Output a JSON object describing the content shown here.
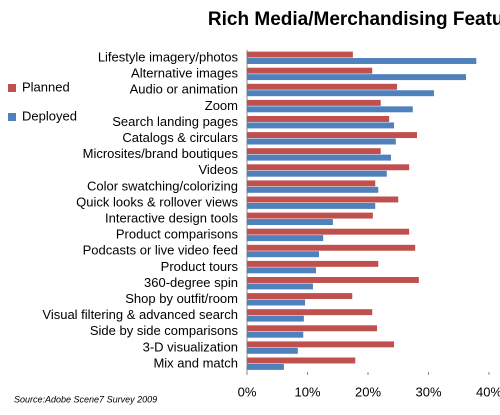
{
  "chart_data": {
    "type": "bar",
    "orientation": "horizontal",
    "title": "Rich Media/Merchandising Features",
    "source": "Source:Adobe Scene7 Survey 2009",
    "categories": [
      "Lifestyle imagery/photos",
      "Alternative images",
      "Audio or animation",
      "Zoom",
      "Search landing pages",
      "Catalogs & circulars",
      "Microsites/brand boutiques",
      "Videos",
      "Color swatching/colorizing",
      "Quick looks & rollover views",
      "Interactive design tools",
      "Product comparisons",
      "Podcasts or live video feed",
      "Product tours",
      "360-degree spin",
      "Shop by outfit/room",
      "Visual filtering & advanced search",
      "Side by side comparisons",
      "3-D visualization",
      "Mix and match"
    ],
    "series": [
      {
        "name": "Planned",
        "color": "#c0504d",
        "values": [
          17.5,
          20.7,
          24.8,
          22.1,
          23.5,
          28.1,
          22.1,
          26.8,
          21.2,
          25,
          20.8,
          26.8,
          27.8,
          21.7,
          28.4,
          17.4,
          20.7,
          21.5,
          24.3,
          17.9
        ]
      },
      {
        "name": "Deployed",
        "color": "#4f81bd",
        "values": [
          37.9,
          36.2,
          30.9,
          27.4,
          24.3,
          24.6,
          23.8,
          23.1,
          21.7,
          21.2,
          14.2,
          12.6,
          11.9,
          11.4,
          10.9,
          9.6,
          9.4,
          9.3,
          8.4,
          6.1
        ]
      }
    ],
    "xlim": [
      0,
      40
    ],
    "xticks": [
      {
        "value": 0,
        "label": "0%"
      },
      {
        "value": 10,
        "label": "10%"
      },
      {
        "value": 20,
        "label": "20%"
      },
      {
        "value": 30,
        "label": "30%"
      },
      {
        "value": 40,
        "label": "40%"
      }
    ],
    "legend": "left",
    "grid": false
  }
}
